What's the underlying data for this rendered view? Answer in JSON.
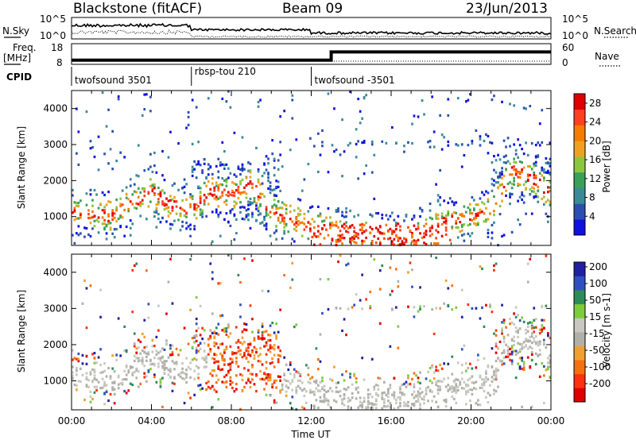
{
  "header": {
    "station": "Blackstone (fitACF)",
    "beam": "Beam 09",
    "date": "23/Jun/2013"
  },
  "top_panels": {
    "nsky_label": "N.Sky",
    "nsearch_label": "N.Search",
    "freq_label_line1": "Freq.",
    "freq_label_line2": "[MHz]",
    "nave_label": "Nave",
    "cpid_label": "CPID",
    "nsky_ticks": [
      "10^5",
      "10^0"
    ],
    "nsearch_ticks": [
      "10^5",
      "10^0"
    ],
    "freq_ticks": [
      "18",
      "8"
    ],
    "nave_ticks": [
      "60",
      "0"
    ]
  },
  "cpid_segments": [
    {
      "label": "twofsound 3501",
      "start": 0,
      "end": 6.0
    },
    {
      "label": "rbsp-tou 210",
      "start": 6.0,
      "end": 12.0
    },
    {
      "label": "twofsound -3501",
      "start": 12.0,
      "end": 24.0
    }
  ],
  "colors": {
    "power_scale": [
      "#1010e0",
      "#2a4fb0",
      "#3a8a9a",
      "#3aa05a",
      "#8cc63f",
      "#f0a020",
      "#f57c00",
      "#ff4020",
      "#e00000"
    ],
    "velocity_scale": [
      "#2020a0",
      "#3050c0",
      "#2e8b57",
      "#7ccd3c",
      "#c8c8c0",
      "#b0b0a8",
      "#f0a030",
      "#f57010",
      "#ff3010",
      "#e00000"
    ]
  },
  "chart_data": [
    {
      "type": "line",
      "name": "search-noise-and-sky-noise",
      "x": [
        0,
        4,
        6,
        12,
        18,
        24
      ],
      "xlim": [
        0,
        24
      ],
      "yscale": "log"
    },
    {
      "type": "line",
      "name": "frequency",
      "x": [
        0,
        13,
        13,
        24
      ],
      "values": [
        10,
        10,
        14,
        14
      ],
      "ylim": [
        8,
        18
      ]
    },
    {
      "type": "heatmap",
      "title": "",
      "xlabel": "Time UT",
      "ylabel": "Slant Range [km]",
      "colorbar_label": "Power [dB]",
      "xticks": [
        "00:00",
        "04:00",
        "08:00",
        "12:00",
        "16:00",
        "20:00",
        "00:00"
      ],
      "yticks": [
        1000,
        2000,
        3000,
        4000
      ],
      "xlim": [
        0,
        24
      ],
      "ylim": [
        200,
        4500
      ],
      "colorbar_ticks": [
        4,
        8,
        12,
        16,
        20,
        24,
        28
      ],
      "colorbar_range": [
        0,
        30
      ]
    },
    {
      "type": "heatmap",
      "title": "",
      "xlabel": "Time UT",
      "ylabel": "Slant Range [km]",
      "colorbar_label": "Velocity [m s-1]",
      "xticks": [
        "00:00",
        "04:00",
        "08:00",
        "12:00",
        "16:00",
        "20:00",
        "00:00"
      ],
      "yticks": [
        1000,
        2000,
        3000,
        4000
      ],
      "xlim": [
        0,
        24
      ],
      "ylim": [
        200,
        4500
      ],
      "colorbar_ticks": [
        200,
        100,
        50,
        15,
        -15,
        -50,
        -100,
        -200
      ]
    }
  ]
}
